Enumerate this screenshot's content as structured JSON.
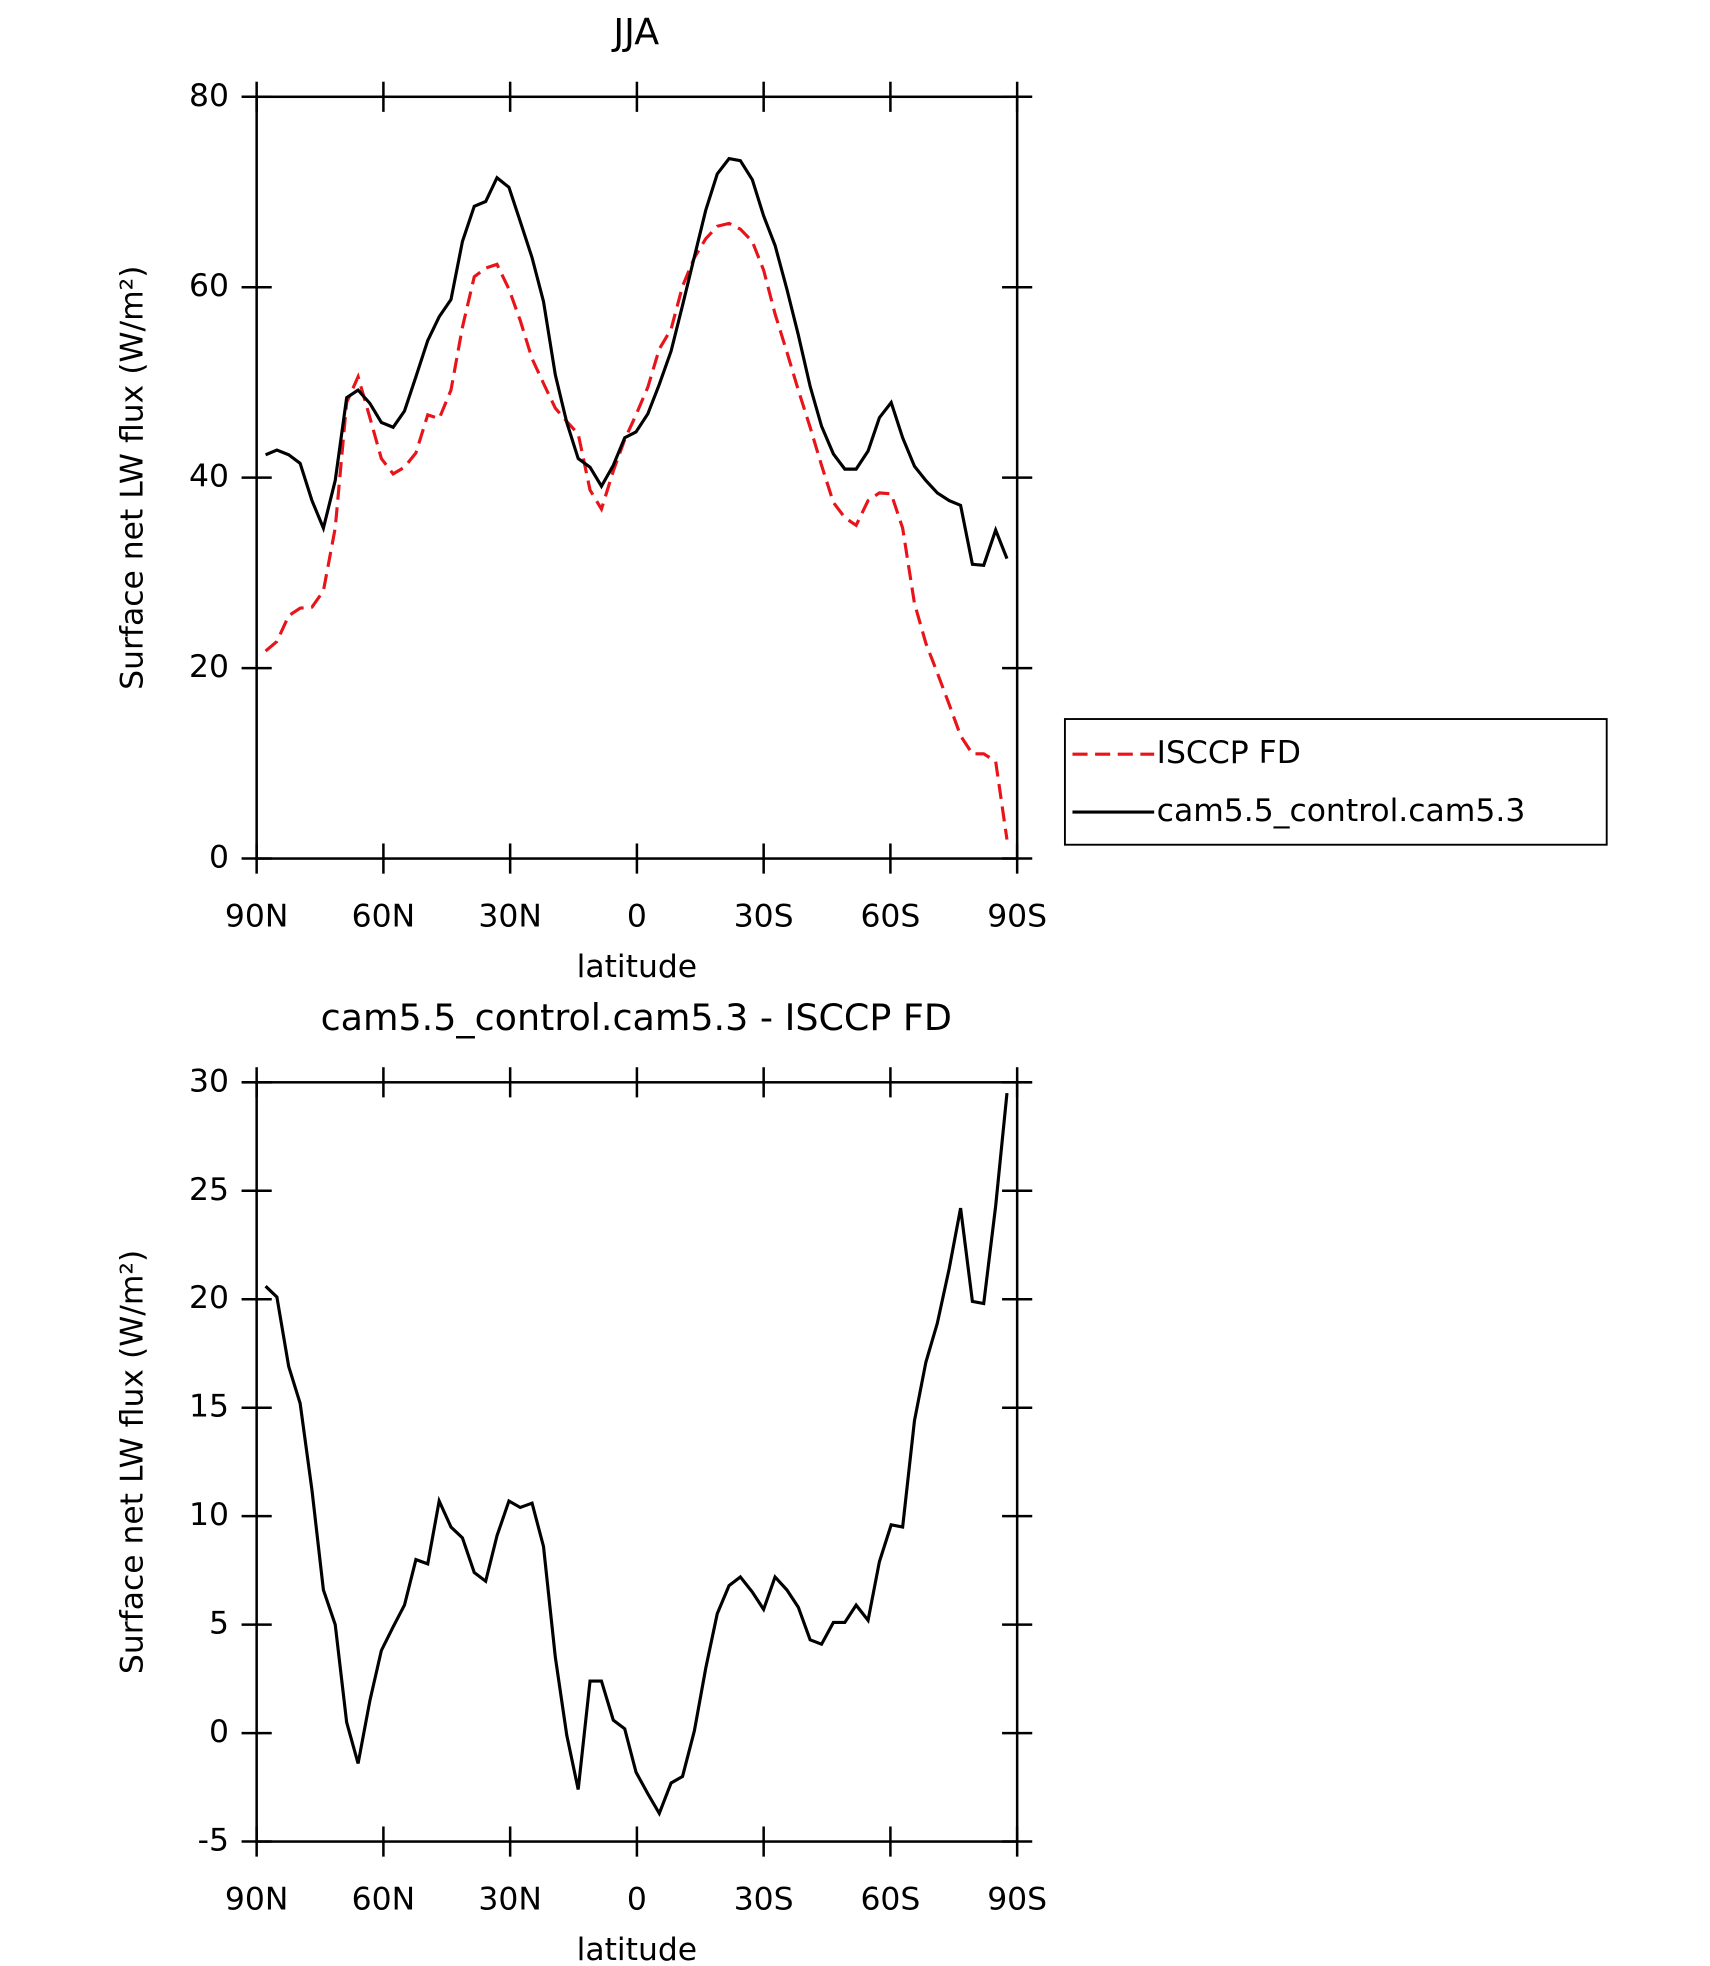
{
  "chart_data": [
    {
      "type": "line",
      "title": "JJA",
      "xlabel": "latitude",
      "ylabel": "Surface net LW flux (W/m²)",
      "x": [
        87.9,
        85.2,
        82.4,
        79.7,
        76.9,
        74.2,
        71.4,
        68.7,
        66.0,
        63.2,
        60.5,
        57.7,
        55.0,
        52.3,
        49.5,
        46.8,
        44.0,
        41.3,
        38.5,
        35.8,
        33.1,
        30.3,
        27.6,
        24.8,
        22.1,
        19.3,
        16.6,
        13.9,
        11.1,
        8.4,
        5.6,
        2.9,
        0.2,
        -2.6,
        -5.3,
        -8.1,
        -10.8,
        -13.6,
        -16.3,
        -19.0,
        -21.8,
        -24.5,
        -27.3,
        -30.0,
        -32.7,
        -35.5,
        -38.2,
        -41.0,
        -43.7,
        -46.5,
        -49.2,
        -51.9,
        -54.7,
        -57.4,
        -60.2,
        -62.9,
        -65.7,
        -68.4,
        -71.1,
        -73.9,
        -76.6,
        -79.4,
        -82.1,
        -84.9,
        -87.6
      ],
      "series": [
        {
          "name": "ISCCP FD",
          "color": "#e8141a",
          "line_style": "dashed",
          "values": [
            21.8,
            22.8,
            25.5,
            26.3,
            26.4,
            28.1,
            34.7,
            47.9,
            50.6,
            46.3,
            42.0,
            40.4,
            41.1,
            42.6,
            46.6,
            46.2,
            49.2,
            55.8,
            61.1,
            62.0,
            62.4,
            59.8,
            56.5,
            52.5,
            49.9,
            47.3,
            45.9,
            44.6,
            38.7,
            36.7,
            40.7,
            44.0,
            46.6,
            49.5,
            53.5,
            55.6,
            60.1,
            63.1,
            65.1,
            66.4,
            66.7,
            66.1,
            64.8,
            61.8,
            57.2,
            53.2,
            49.2,
            45.3,
            41.3,
            37.4,
            35.8,
            35.0,
            37.6,
            38.4,
            38.3,
            34.7,
            26.8,
            22.6,
            19.5,
            16.2,
            12.9,
            11.0,
            11.0,
            10.2,
            2.0
          ]
        },
        {
          "name": "cam5.5_control.cam5.3",
          "color": "#000000",
          "line_style": "solid",
          "values": [
            42.4,
            42.9,
            42.4,
            41.5,
            37.6,
            34.7,
            39.7,
            48.4,
            49.2,
            47.8,
            45.8,
            45.3,
            47.0,
            50.6,
            54.4,
            56.9,
            58.7,
            64.8,
            68.5,
            69.0,
            71.5,
            70.5,
            66.9,
            63.1,
            58.5,
            50.8,
            45.8,
            42.0,
            41.1,
            39.1,
            41.3,
            44.2,
            44.8,
            46.7,
            49.8,
            53.3,
            58.1,
            63.2,
            68.1,
            71.9,
            73.5,
            73.3,
            71.3,
            67.5,
            64.4,
            59.8,
            55.0,
            49.6,
            45.4,
            42.5,
            40.9,
            40.9,
            42.8,
            46.3,
            47.9,
            44.2,
            41.2,
            39.7,
            38.4,
            37.6,
            37.1,
            30.9,
            30.8,
            34.5,
            31.5
          ]
        }
      ],
      "xlim": [
        90,
        -90
      ],
      "xticks": [
        {
          "value": 90,
          "label": "90N"
        },
        {
          "value": 60,
          "label": "60N"
        },
        {
          "value": 30,
          "label": "30N"
        },
        0,
        {
          "value": -30,
          "label": "30S"
        },
        {
          "value": -60,
          "label": "60S"
        },
        {
          "value": -90,
          "label": "90S"
        }
      ],
      "ylim": [
        0,
        80
      ],
      "yticks": [
        0,
        20,
        40,
        60,
        80
      ],
      "legend": "right"
    },
    {
      "type": "line",
      "title": "cam5.5_control.cam5.3 - ISCCP FD",
      "xlabel": "latitude",
      "ylabel": "Surface net LW flux (W/m²)",
      "x": [
        87.9,
        85.2,
        82.4,
        79.7,
        76.9,
        74.2,
        71.4,
        68.7,
        66.0,
        63.2,
        60.5,
        57.7,
        55.0,
        52.3,
        49.5,
        46.8,
        44.0,
        41.3,
        38.5,
        35.8,
        33.1,
        30.3,
        27.6,
        24.8,
        22.1,
        19.3,
        16.6,
        13.9,
        11.1,
        8.4,
        5.6,
        2.9,
        0.2,
        -2.6,
        -5.3,
        -8.1,
        -10.8,
        -13.6,
        -16.3,
        -19.0,
        -21.8,
        -24.5,
        -27.3,
        -30.0,
        -32.7,
        -35.5,
        -38.2,
        -41.0,
        -43.7,
        -46.5,
        -49.2,
        -51.9,
        -54.7,
        -57.4,
        -60.2,
        -62.9,
        -65.7,
        -68.4,
        -71.1,
        -73.9,
        -76.6,
        -79.4,
        -82.1,
        -84.9,
        -87.6
      ],
      "series": [
        {
          "color": "#000000",
          "line_style": "solid",
          "values": [
            20.6,
            20.1,
            16.9,
            15.2,
            11.2,
            6.6,
            5.0,
            0.5,
            -1.4,
            1.5,
            3.8,
            4.9,
            5.9,
            8.0,
            7.8,
            10.7,
            9.5,
            9.0,
            7.4,
            7.0,
            9.1,
            10.7,
            10.4,
            10.6,
            8.6,
            3.5,
            -0.1,
            -2.6,
            2.4,
            2.4,
            0.6,
            0.2,
            -1.8,
            -2.8,
            -3.7,
            -2.3,
            -2.0,
            0.1,
            3.0,
            5.5,
            6.8,
            7.2,
            6.5,
            5.7,
            7.2,
            6.6,
            5.8,
            4.3,
            4.1,
            5.1,
            5.1,
            5.9,
            5.2,
            7.9,
            9.6,
            9.5,
            14.4,
            17.1,
            18.9,
            21.4,
            24.2,
            19.9,
            19.8,
            24.3,
            29.5
          ]
        }
      ],
      "xlim": [
        90,
        -90
      ],
      "xticks": [
        {
          "value": 90,
          "label": "90N"
        },
        {
          "value": 60,
          "label": "60N"
        },
        {
          "value": 30,
          "label": "30N"
        },
        0,
        {
          "value": -30,
          "label": "30S"
        },
        {
          "value": -60,
          "label": "60S"
        },
        {
          "value": -90,
          "label": "90S"
        }
      ],
      "ylim": [
        -5,
        30
      ],
      "yticks": [
        -5,
        0,
        5,
        10,
        15,
        20,
        25,
        30
      ]
    }
  ]
}
